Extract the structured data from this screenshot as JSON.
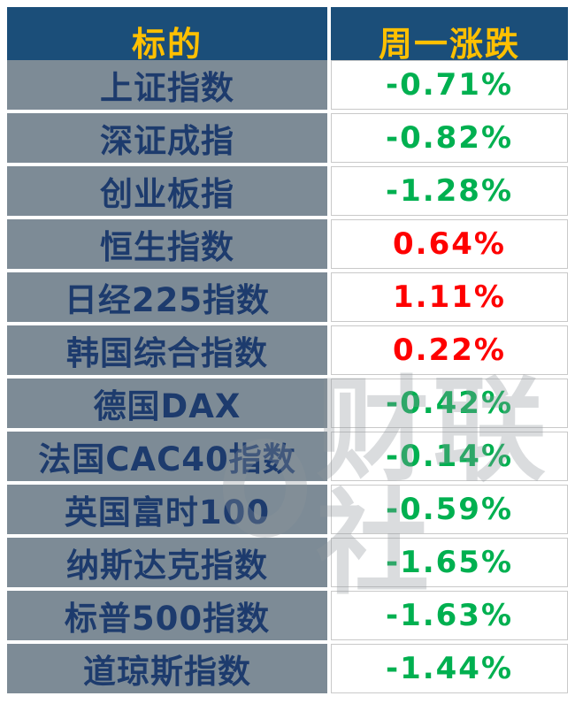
{
  "header": {
    "target": "标的",
    "change": "周一涨跌"
  },
  "rows": [
    {
      "name": "上证指数",
      "change": "-0.71%",
      "direction": "down"
    },
    {
      "name": "深证成指",
      "change": "-0.82%",
      "direction": "down"
    },
    {
      "name": "创业板指",
      "change": "-1.28%",
      "direction": "down"
    },
    {
      "name": "恒生指数",
      "change": "0.64%",
      "direction": "up"
    },
    {
      "name": "日经225指数",
      "change": "1.11%",
      "direction": "up"
    },
    {
      "name": "韩国综合指数",
      "change": "0.22%",
      "direction": "up"
    },
    {
      "name": "德国DAX",
      "change": "-0.42%",
      "direction": "down"
    },
    {
      "name": "法国CAC40指数",
      "change": "-0.14%",
      "direction": "down"
    },
    {
      "name": "英国富时100",
      "change": "-0.59%",
      "direction": "down"
    },
    {
      "name": "纳斯达克指数",
      "change": "-1.65%",
      "direction": "down"
    },
    {
      "name": "标普500指数",
      "change": "-1.63%",
      "direction": "down"
    },
    {
      "name": "道琼斯指数",
      "change": "-1.44%",
      "direction": "down"
    }
  ],
  "watermark": {
    "text": "财联社"
  },
  "colors": {
    "header_bg": "#1b4e79",
    "header_text": "#ffc000",
    "name_bg": "#7d8b96",
    "name_text": "#1d3b6d",
    "up": "#fe0000",
    "down": "#00b050",
    "cell_border": "#c9c9c9"
  },
  "chart_data": {
    "type": "table",
    "columns": [
      "标的",
      "周一涨跌"
    ],
    "rows": [
      [
        "上证指数",
        -0.71
      ],
      [
        "深证成指",
        -0.82
      ],
      [
        "创业板指",
        -1.28
      ],
      [
        "恒生指数",
        0.64
      ],
      [
        "日经225指数",
        1.11
      ],
      [
        "韩国综合指数",
        0.22
      ],
      [
        "德国DAX",
        -0.42
      ],
      [
        "法国CAC40指数",
        -0.14
      ],
      [
        "英国富时100",
        -0.59
      ],
      [
        "纳斯达克指数",
        -1.65
      ],
      [
        "标普500指数",
        -1.63
      ],
      [
        "道琼斯指数",
        -1.44
      ]
    ],
    "unit": "%",
    "color_convention": "red = gain, green = loss"
  }
}
